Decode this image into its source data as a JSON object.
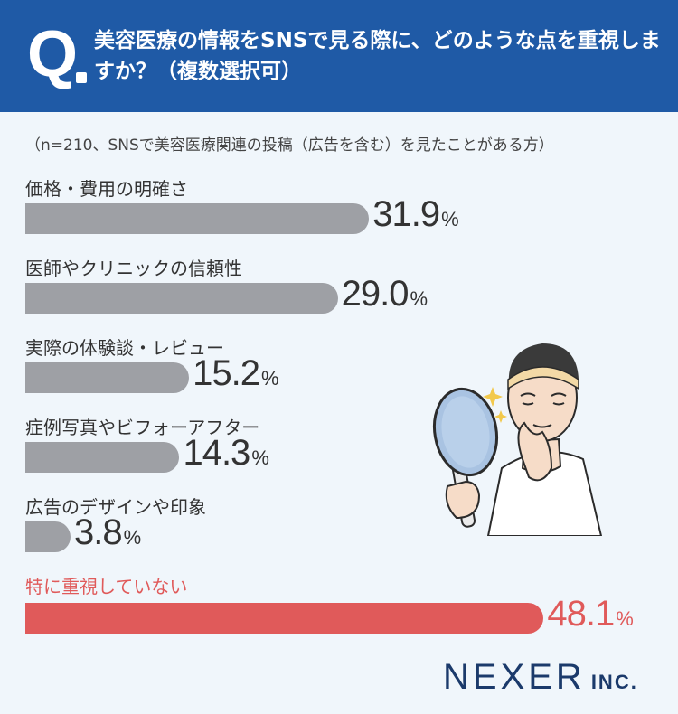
{
  "question": {
    "letter": "Q",
    "text": "美容医療の情報をSNSで見る際に、どのような点を重視しますか？（複数選択可）"
  },
  "note": "（n=210、SNSで美容医療関連の投稿（広告を含む）を見たことがある方）",
  "chart_data": {
    "type": "bar",
    "orientation": "horizontal",
    "categories": [
      "価格・費用の明確さ",
      "医師やクリニックの信頼性",
      "実際の体験談・レビュー",
      "症例写真やビフォーアフター",
      "広告のデザインや印象",
      "特に重視していない"
    ],
    "values": [
      31.9,
      29.0,
      15.2,
      14.3,
      3.8,
      48.1
    ],
    "value_labels": [
      "31.9",
      "29.0",
      "15.2",
      "14.3",
      "3.8",
      "48.1"
    ],
    "unit": "%",
    "colors": {
      "default": "#9ea0a5",
      "highlight": "#e05a5a"
    },
    "highlight_index": 5
  },
  "logo": {
    "main": "NEXER",
    "sub": "INC."
  }
}
